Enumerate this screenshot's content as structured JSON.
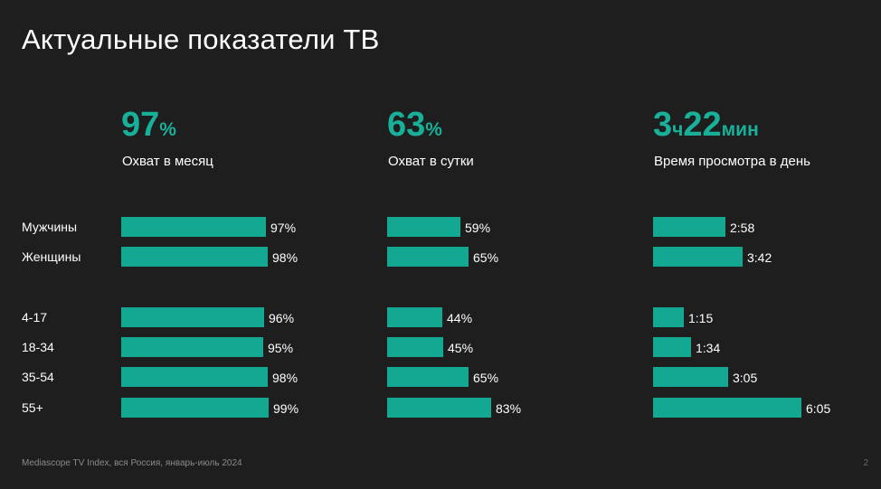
{
  "title": "Актуальные показатели ТВ",
  "kpis": [
    {
      "value": "97",
      "unit": "%",
      "label": "Охват в месяц"
    },
    {
      "value": "63",
      "unit": "%",
      "label": "Охват в сутки"
    },
    {
      "value_parts": [
        "3",
        "ч",
        "22",
        "мин"
      ],
      "label": "Время просмотра в день"
    }
  ],
  "row_labels": [
    "Мужчины",
    "Женщины",
    "4-17",
    "18-34",
    "35-54",
    "55+"
  ],
  "chart_data": [
    {
      "type": "bar",
      "title": "Охват в месяц",
      "categories": [
        "Мужчины",
        "Женщины",
        "4-17",
        "18-34",
        "35-54",
        "55+"
      ],
      "values": [
        97,
        98,
        96,
        95,
        98,
        99
      ],
      "labels": [
        "97%",
        "98%",
        "96%",
        "95%",
        "98%",
        "99%"
      ],
      "unit": "%"
    },
    {
      "type": "bar",
      "title": "Охват в сутки",
      "categories": [
        "Мужчины",
        "Женщины",
        "4-17",
        "18-34",
        "35-54",
        "55+"
      ],
      "values": [
        59,
        65,
        44,
        45,
        65,
        83
      ],
      "labels": [
        "59%",
        "65%",
        "44%",
        "45%",
        "65%",
        "83%"
      ],
      "unit": "%"
    },
    {
      "type": "bar",
      "title": "Время просмотра в день",
      "categories": [
        "Мужчины",
        "Женщины",
        "4-17",
        "18-34",
        "35-54",
        "55+"
      ],
      "values": [
        178,
        222,
        75,
        94,
        185,
        365
      ],
      "labels": [
        "2:58",
        "3:42",
        "1:15",
        "1:34",
        "3:05",
        "6:05"
      ],
      "unit": "min"
    }
  ],
  "colors": {
    "accent": "#19b09a",
    "bar": "#13a892",
    "background": "#1e1e1e"
  },
  "footer": "Mediascope TV Index, вся Россия, январь-июль 2024",
  "page_number": "2"
}
